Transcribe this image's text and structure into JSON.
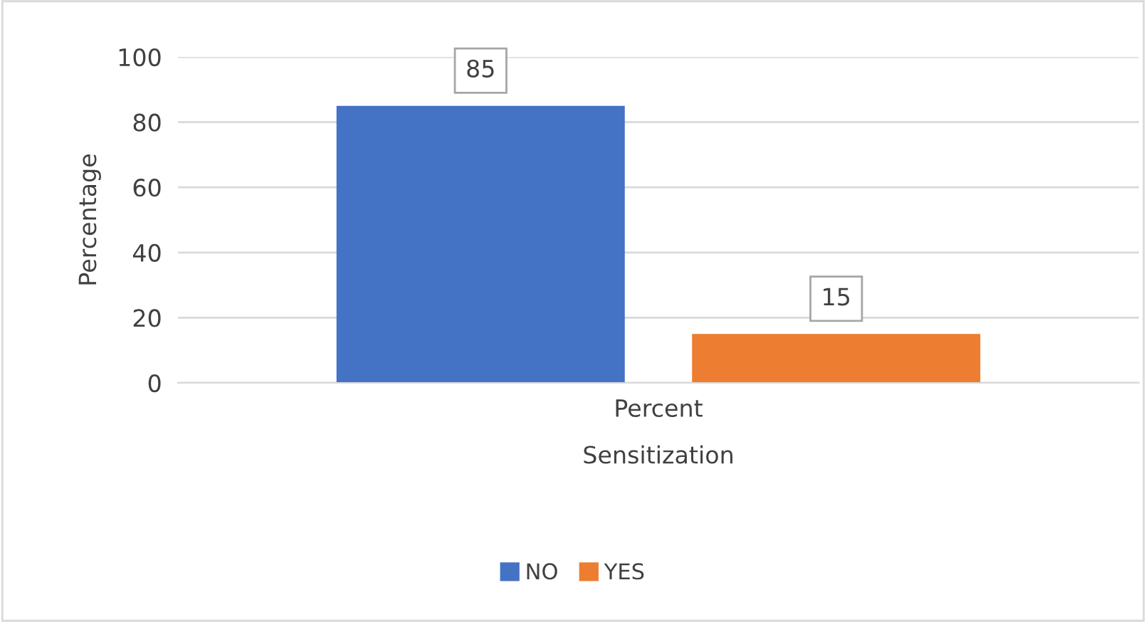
{
  "chart_data": {
    "type": "bar",
    "xlabel": "Sensitization",
    "ylabel": "Percentage",
    "categories": [
      "Percent"
    ],
    "series": [
      {
        "name": "NO",
        "color": "#4472c4",
        "values": [
          85
        ]
      },
      {
        "name": "YES",
        "color": "#ed7d31",
        "values": [
          15
        ]
      }
    ],
    "ylim": [
      0,
      100
    ],
    "yticks": [
      0,
      20,
      40,
      60,
      80,
      100
    ],
    "grid": "y",
    "legend": "bottom",
    "data_labels": true
  }
}
